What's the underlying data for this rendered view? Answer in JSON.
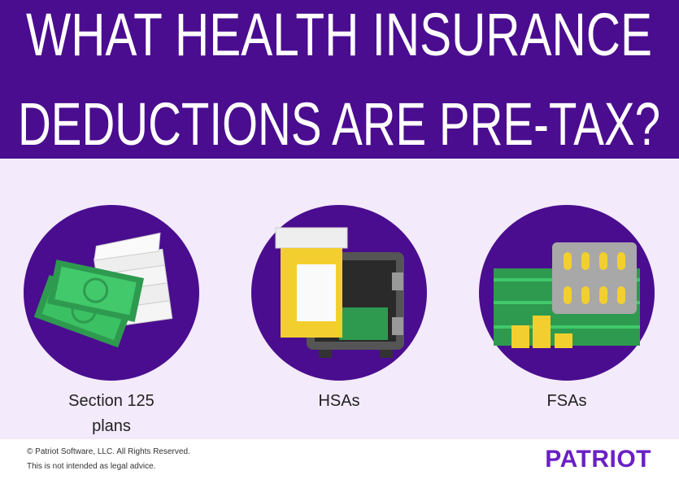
{
  "header": {
    "title_lines": [
      "WHAT HEALTH INSURANCE",
      "DEDUCTIONS ARE PRE-TAX?"
    ]
  },
  "items": [
    {
      "label": "Section 125 plans"
    },
    {
      "label": "HSAs"
    },
    {
      "label": "FSAs"
    }
  ],
  "footer": {
    "copyright": "© Patriot Software, LLC. All Rights Reserved.",
    "disclaimer": "This is not intended as legal advice.",
    "logo": "PATRIOT"
  }
}
